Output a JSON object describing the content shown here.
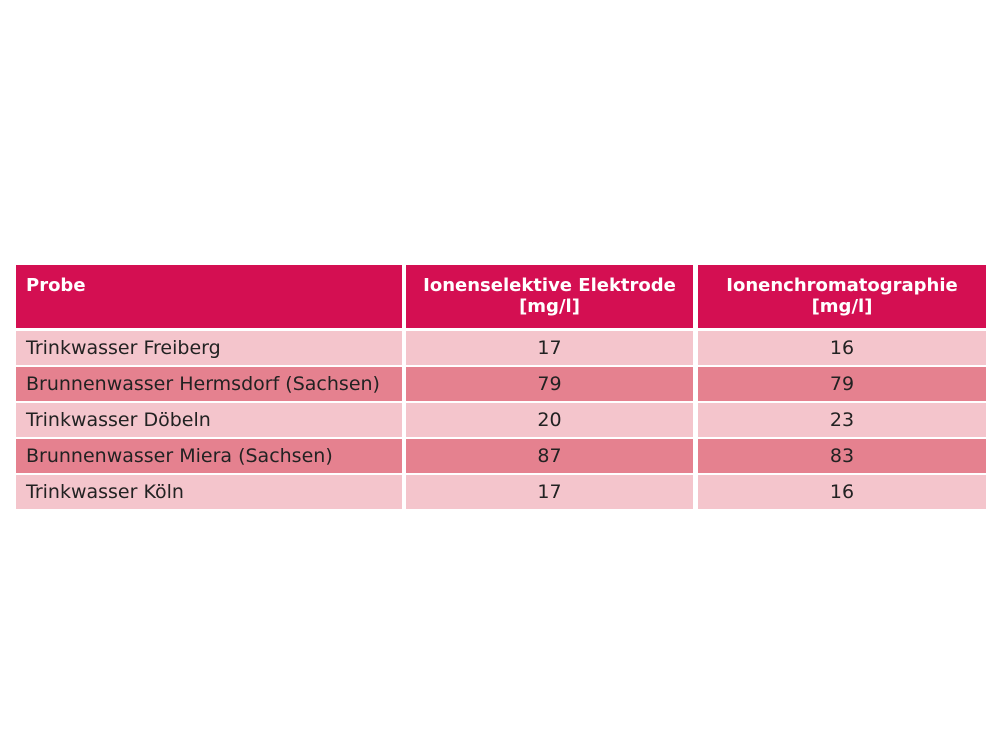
{
  "table": {
    "header": [
      [
        "Probe"
      ],
      [
        "Ionenselektive Elektrode",
        "[mg/l]"
      ],
      [
        "Ionenchromatographie",
        "[mg/l]"
      ]
    ],
    "rows": [
      [
        "Trinkwasser Freiberg",
        17,
        16
      ],
      [
        "Brunnenwasser Hermsdorf (Sachsen)",
        79,
        79
      ],
      [
        "Trinkwasser Döbeln",
        20,
        23
      ],
      [
        "Brunnenwasser Miera (Sachsen)",
        87,
        83
      ],
      [
        "Trinkwasser Köln",
        17,
        16
      ]
    ]
  }
}
